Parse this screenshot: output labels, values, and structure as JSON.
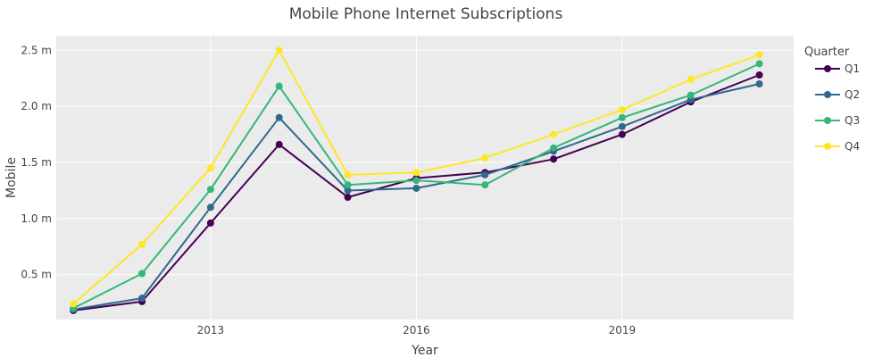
{
  "chart_data": {
    "type": "line",
    "title": "Mobile Phone Internet Subscriptions",
    "xlabel": "Year",
    "ylabel": "Mobile",
    "x": [
      2011,
      2012,
      2013,
      2014,
      2015,
      2016,
      2017,
      2018,
      2019,
      2020,
      2021
    ],
    "xlim": [
      2010.75,
      2021.5
    ],
    "ylim": [
      0.1,
      2.63
    ],
    "x_ticks": [
      {
        "value": 2013,
        "label": "2013"
      },
      {
        "value": 2016,
        "label": "2016"
      },
      {
        "value": 2019,
        "label": "2019"
      }
    ],
    "y_ticks": [
      {
        "value": 0.5,
        "label": "0.5 m"
      },
      {
        "value": 1.0,
        "label": "1.0 m"
      },
      {
        "value": 1.5,
        "label": "1.5 m"
      },
      {
        "value": 2.0,
        "label": "2.0 m"
      },
      {
        "value": 2.5,
        "label": "2.5 m"
      }
    ],
    "legend": {
      "title": "Quarter",
      "position": "right"
    },
    "grid": true,
    "background": "#ebebeb",
    "series": [
      {
        "name": "Q1",
        "color": "#440154",
        "values": [
          0.18,
          0.26,
          0.96,
          1.66,
          1.19,
          1.36,
          1.41,
          1.53,
          1.75,
          2.04,
          2.28
        ]
      },
      {
        "name": "Q2",
        "color": "#31688e",
        "values": [
          0.19,
          0.29,
          1.1,
          1.9,
          1.25,
          1.27,
          1.39,
          1.6,
          1.82,
          2.06,
          2.2
        ]
      },
      {
        "name": "Q3",
        "color": "#35b779",
        "values": [
          0.2,
          0.51,
          1.26,
          2.18,
          1.3,
          1.34,
          1.3,
          1.63,
          1.9,
          2.1,
          2.38
        ]
      },
      {
        "name": "Q4",
        "color": "#fde725",
        "values": [
          0.24,
          0.77,
          1.45,
          2.5,
          1.39,
          1.41,
          1.54,
          1.75,
          1.97,
          2.24,
          2.46
        ]
      }
    ]
  }
}
